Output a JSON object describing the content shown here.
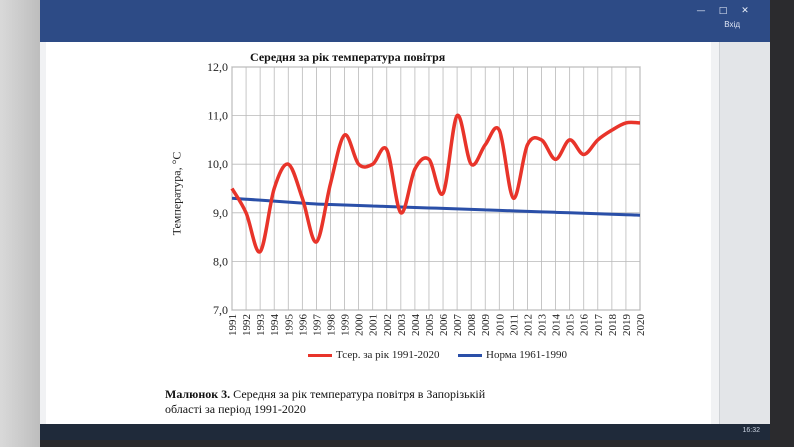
{
  "window": {
    "titlebar_text": "Вхід",
    "taskbar_time": "16:32"
  },
  "chart_data": {
    "type": "line",
    "title": "Середня за рік температура повітря",
    "xlabel": "",
    "ylabel": "Температура, °С",
    "x": [
      1991,
      1992,
      1993,
      1994,
      1995,
      1996,
      1997,
      1998,
      1999,
      2000,
      2001,
      2002,
      2003,
      2004,
      2005,
      2006,
      2007,
      2008,
      2009,
      2010,
      2011,
      2012,
      2013,
      2014,
      2015,
      2016,
      2017,
      2018,
      2019,
      2020
    ],
    "x_ticks": [
      "1991",
      "1992",
      "1993",
      "1994",
      "1995",
      "1996",
      "1997",
      "1998",
      "1999",
      "2000",
      "2001",
      "2002",
      "2003",
      "2004",
      "2005",
      "2006",
      "2007",
      "2008",
      "2009",
      "2010",
      "2011",
      "2012",
      "2013",
      "2014",
      "2015",
      "2016",
      "2017",
      "2018",
      "2019",
      "2020"
    ],
    "y_ticks": [
      "7,0",
      "8,0",
      "9,0",
      "10,0",
      "11,0",
      "12,0"
    ],
    "ylim": [
      7.0,
      12.0
    ],
    "grid": true,
    "legend_position": "bottom",
    "series": [
      {
        "name": "Тсер. за рік 1991-2020",
        "color": "#e8342a",
        "values": [
          9.5,
          9.0,
          8.2,
          9.5,
          10.0,
          9.3,
          8.4,
          9.6,
          10.6,
          10.0,
          10.0,
          10.3,
          9.0,
          9.9,
          10.1,
          9.4,
          11.0,
          10.0,
          10.4,
          10.7,
          9.3,
          10.4,
          10.5,
          10.1,
          10.5,
          10.2,
          10.5,
          10.7,
          10.85,
          10.85
        ]
      },
      {
        "name": "Норма 1961-1990",
        "color": "#2a4fa8",
        "values": [
          9.3,
          9.28,
          9.26,
          9.24,
          9.22,
          9.2,
          9.18,
          9.17,
          9.16,
          9.15,
          9.14,
          9.13,
          9.12,
          9.11,
          9.1,
          9.09,
          9.08,
          9.07,
          9.06,
          9.05,
          9.04,
          9.03,
          9.02,
          9.01,
          9.0,
          8.99,
          8.98,
          8.97,
          8.96,
          8.95
        ]
      }
    ]
  },
  "caption": {
    "label": "Малюнок 3.",
    "text": " Середня за рік температура повітря в Запорізькій області за період 1991-2020"
  }
}
